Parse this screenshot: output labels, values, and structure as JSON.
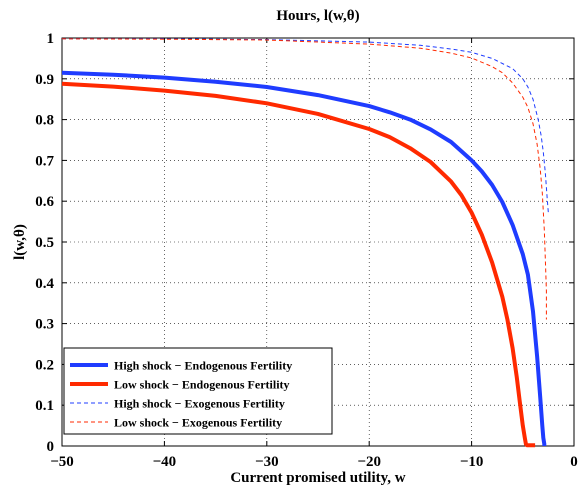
{
  "chart_data": {
    "type": "line",
    "title": "Hours, l(w,θ)",
    "xlabel": "Current promised utility, w",
    "ylabel": "l(w,θ)",
    "xlim": [
      -50,
      0
    ],
    "ylim": [
      0,
      1
    ],
    "xticks": [
      -50,
      -40,
      -30,
      -20,
      -10,
      0
    ],
    "yticks": [
      0,
      0.1,
      0.2,
      0.3,
      0.4,
      0.5,
      0.6,
      0.7,
      0.8,
      0.9,
      1
    ],
    "xtick_labels": [
      "−50",
      "−40",
      "−30",
      "−20",
      "−10",
      "0"
    ],
    "ytick_labels": [
      "0",
      "0.1",
      "0.2",
      "0.3",
      "0.4",
      "0.5",
      "0.6",
      "0.7",
      "0.8",
      "0.9",
      "1"
    ],
    "grid": true,
    "legend_position": "bottom-left",
    "series": [
      {
        "name": "High shock − Endogenous Fertility",
        "color": "#1f3cff",
        "style": "solid-thick",
        "x": [
          -50,
          -45,
          -40,
          -35,
          -30,
          -25,
          -20,
          -18,
          -16,
          -14,
          -12,
          -10,
          -9,
          -8,
          -7,
          -6,
          -5,
          -4.5,
          -4,
          -3.6,
          -3.3,
          -3.1,
          -3.0,
          -2.9,
          -2.9
        ],
        "y": [
          0.915,
          0.91,
          0.903,
          0.893,
          0.88,
          0.86,
          0.833,
          0.818,
          0.8,
          0.776,
          0.745,
          0.7,
          0.673,
          0.64,
          0.598,
          0.542,
          0.47,
          0.42,
          0.33,
          0.22,
          0.12,
          0.05,
          0.02,
          0.005,
          0.0
        ]
      },
      {
        "name": "Low shock − Endogenous Fertility",
        "color": "#ff2a00",
        "style": "solid-thick",
        "x": [
          -50,
          -45,
          -40,
          -35,
          -30,
          -25,
          -20,
          -18,
          -16,
          -14,
          -12,
          -11,
          -10,
          -9,
          -8,
          -7,
          -6.5,
          -6,
          -5.6,
          -5.3,
          -5.0,
          -4.8,
          -4.7,
          -4.6,
          -4.0,
          -3.8
        ],
        "y": [
          0.888,
          0.881,
          0.871,
          0.858,
          0.84,
          0.814,
          0.777,
          0.757,
          0.73,
          0.696,
          0.648,
          0.615,
          0.572,
          0.518,
          0.45,
          0.366,
          0.31,
          0.24,
          0.17,
          0.11,
          0.05,
          0.02,
          0.005,
          0.002,
          0.002,
          0.002
        ]
      },
      {
        "name": "High shock − Exogenous Fertility",
        "color": "#1f3cff",
        "style": "dashed-thin",
        "x": [
          -50,
          -40,
          -30,
          -20,
          -15,
          -12,
          -10,
          -8,
          -6,
          -5,
          -4.5,
          -4,
          -3.5,
          -3.2,
          -3.0,
          -2.8,
          -2.6,
          -2.5
        ],
        "y": [
          0.998,
          0.998,
          0.996,
          0.99,
          0.982,
          0.973,
          0.965,
          0.95,
          0.925,
          0.9,
          0.88,
          0.85,
          0.8,
          0.76,
          0.72,
          0.67,
          0.6,
          0.57
        ]
      },
      {
        "name": "Low shock − Exogenous Fertility",
        "color": "#ff2a00",
        "style": "dashed-thin",
        "x": [
          -50,
          -40,
          -30,
          -20,
          -15,
          -12,
          -10,
          -8,
          -7,
          -6,
          -5,
          -4.5,
          -4,
          -3.6,
          -3.3,
          -3.1,
          -2.9,
          -2.8,
          -2.7,
          -2.7
        ],
        "y": [
          0.998,
          0.997,
          0.995,
          0.985,
          0.975,
          0.963,
          0.951,
          0.93,
          0.915,
          0.89,
          0.855,
          0.83,
          0.79,
          0.74,
          0.68,
          0.62,
          0.53,
          0.46,
          0.38,
          0.31
        ]
      }
    ]
  }
}
